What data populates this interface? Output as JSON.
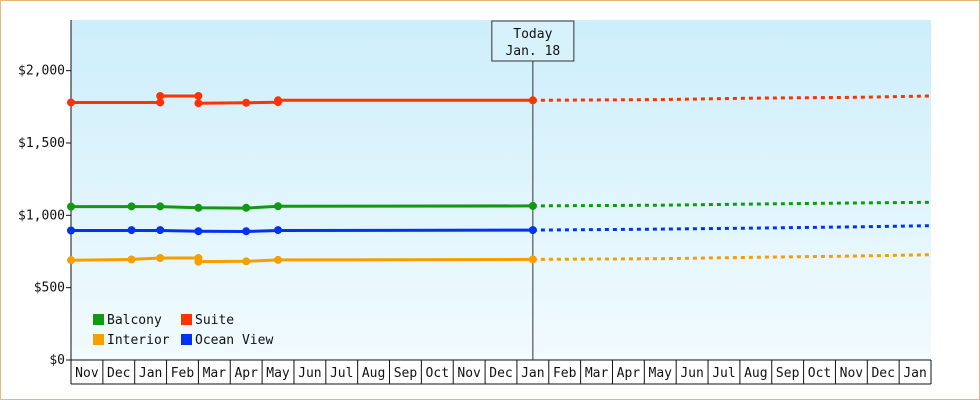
{
  "chart_data": {
    "type": "line",
    "title": "",
    "xlabel": "",
    "ylabel": "",
    "ylim": [
      0,
      2350
    ],
    "y_ticks": [
      0,
      500,
      1000,
      1500,
      2000
    ],
    "y_tick_labels": [
      "$0",
      "$500",
      "$1,000",
      "$1,500",
      "$2,000"
    ],
    "months": [
      "Nov",
      "Dec",
      "Jan",
      "Feb",
      "Mar",
      "Apr",
      "May",
      "Jun",
      "Jul",
      "Aug",
      "Sep",
      "Oct",
      "Nov",
      "Dec",
      "Jan",
      "Feb",
      "Mar",
      "Apr",
      "May",
      "Jun",
      "Jul",
      "Aug",
      "Sep",
      "Oct",
      "Nov",
      "Dec",
      "Jan"
    ],
    "today_marker": {
      "line1": "Today",
      "line2": "Jan. 18",
      "x": 14.5
    },
    "legend": [
      {
        "label": "Balcony",
        "color": "#119911"
      },
      {
        "label": "Suite",
        "color": "#ff3300"
      },
      {
        "label": "Interior",
        "color": "#f5a000"
      },
      {
        "label": "Ocean View",
        "color": "#0033ee"
      }
    ],
    "series": [
      {
        "name": "Suite",
        "color": "#ff3300",
        "history": [
          [
            0,
            1780
          ],
          [
            2.8,
            1780
          ],
          [
            2.8,
            1825
          ],
          [
            4.0,
            1825
          ],
          [
            4.0,
            1775
          ],
          [
            5.5,
            1778
          ],
          [
            6.5,
            1782
          ],
          [
            6.5,
            1795
          ],
          [
            14.5,
            1795
          ]
        ],
        "markers": [
          [
            0,
            1780
          ],
          [
            2.8,
            1780
          ],
          [
            2.8,
            1825
          ],
          [
            4.0,
            1825
          ],
          [
            4.0,
            1775
          ],
          [
            5.5,
            1778
          ],
          [
            6.5,
            1782
          ],
          [
            6.5,
            1795
          ],
          [
            14.5,
            1795
          ]
        ],
        "forecast": [
          [
            14.5,
            1795
          ],
          [
            18.5,
            1800
          ],
          [
            21.5,
            1810
          ],
          [
            24.5,
            1815
          ],
          [
            27,
            1825
          ]
        ]
      },
      {
        "name": "Balcony",
        "color": "#119911",
        "history": [
          [
            0,
            1060
          ],
          [
            1.9,
            1060
          ],
          [
            2.8,
            1060
          ],
          [
            4.0,
            1052
          ],
          [
            5.5,
            1050
          ],
          [
            6.5,
            1062
          ],
          [
            14.5,
            1065
          ]
        ],
        "markers": [
          [
            0,
            1060
          ],
          [
            1.9,
            1062
          ],
          [
            2.8,
            1062
          ],
          [
            4.0,
            1052
          ],
          [
            5.5,
            1052
          ],
          [
            6.5,
            1063
          ],
          [
            14.5,
            1065
          ]
        ],
        "forecast": [
          [
            14.5,
            1065
          ],
          [
            18.5,
            1070
          ],
          [
            21.5,
            1078
          ],
          [
            24.5,
            1085
          ],
          [
            27,
            1090
          ]
        ]
      },
      {
        "name": "Ocean View",
        "color": "#0033ee",
        "history": [
          [
            0,
            895
          ],
          [
            1.9,
            895
          ],
          [
            2.8,
            895
          ],
          [
            4.0,
            890
          ],
          [
            5.5,
            888
          ],
          [
            6.5,
            895
          ],
          [
            14.5,
            898
          ]
        ],
        "markers": [
          [
            0,
            895
          ],
          [
            1.9,
            898
          ],
          [
            2.8,
            898
          ],
          [
            4.0,
            890
          ],
          [
            5.5,
            890
          ],
          [
            6.5,
            898
          ],
          [
            14.5,
            898
          ]
        ],
        "forecast": [
          [
            14.5,
            898
          ],
          [
            18.5,
            905
          ],
          [
            21.5,
            912
          ],
          [
            24.5,
            920
          ],
          [
            27,
            928
          ]
        ]
      },
      {
        "name": "Interior",
        "color": "#f5a000",
        "history": [
          [
            0,
            690
          ],
          [
            1.9,
            695
          ],
          [
            2.8,
            705
          ],
          [
            4.0,
            705
          ],
          [
            4.0,
            680
          ],
          [
            5.5,
            682
          ],
          [
            6.5,
            692
          ],
          [
            14.5,
            695
          ]
        ],
        "markers": [
          [
            0,
            690
          ],
          [
            1.9,
            695
          ],
          [
            2.8,
            705
          ],
          [
            4.0,
            705
          ],
          [
            4.0,
            680
          ],
          [
            5.5,
            682
          ],
          [
            6.5,
            692
          ],
          [
            14.5,
            695
          ]
        ],
        "forecast": [
          [
            14.5,
            695
          ],
          [
            18.5,
            700
          ],
          [
            21.5,
            710
          ],
          [
            24.5,
            718
          ],
          [
            27,
            728
          ]
        ]
      }
    ]
  }
}
